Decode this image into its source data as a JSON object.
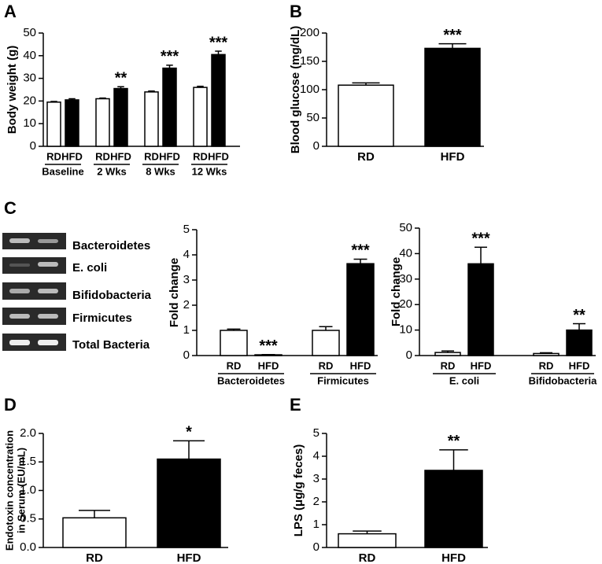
{
  "chart_data": [
    {
      "type": "bar",
      "panel": "A",
      "ylabel": "Body weight (g)",
      "categories": [
        "Baseline",
        "2 Wks",
        "8 Wks",
        "12 Wks"
      ],
      "series": [
        {
          "name": "RD",
          "color": "#ffffff",
          "values": [
            19.5,
            21,
            24,
            26
          ],
          "errors": [
            0.3,
            0.3,
            0.4,
            0.5
          ],
          "significance": [
            null,
            null,
            null,
            null
          ]
        },
        {
          "name": "HFD",
          "color": "#000000",
          "values": [
            20.5,
            25.5,
            34.5,
            40.5
          ],
          "errors": [
            0.5,
            0.8,
            1.3,
            1.5
          ],
          "significance": [
            null,
            "**",
            "***",
            "***"
          ]
        }
      ],
      "ylim": [
        0,
        50
      ],
      "yticks": [
        0,
        10,
        20,
        30,
        40,
        50
      ]
    },
    {
      "type": "bar",
      "panel": "B",
      "ylabel": "Blood glucose (mg/dL)",
      "categories": [
        "RD",
        "HFD"
      ],
      "values": [
        108,
        173
      ],
      "errors": [
        4,
        8
      ],
      "colors": [
        "#ffffff",
        "#000000"
      ],
      "significance": [
        null,
        "***"
      ],
      "ylim": [
        0,
        200
      ],
      "yticks": [
        0,
        50,
        100,
        150,
        200
      ]
    },
    {
      "type": "bar",
      "panel": "C",
      "ylabel": "Fold change",
      "categories": [
        "Bacteroidetes",
        "Firmicutes"
      ],
      "series": [
        {
          "name": "RD",
          "color": "#ffffff",
          "values": [
            1.0,
            1.0
          ],
          "errors": [
            0.05,
            0.15
          ],
          "significance": [
            null,
            null
          ]
        },
        {
          "name": "HFD",
          "color": "#000000",
          "values": [
            0.03,
            3.65
          ],
          "errors": [
            0.01,
            0.18
          ],
          "significance": [
            "***",
            "***"
          ]
        }
      ],
      "ylim": [
        0,
        5
      ],
      "yticks": [
        0,
        1,
        2,
        3,
        4,
        5
      ]
    },
    {
      "type": "bar",
      "ylabel": "Fold change",
      "categories": [
        "E. coli",
        "Bifidobacteria"
      ],
      "series": [
        {
          "name": "RD",
          "color": "#ffffff",
          "values": [
            1.2,
            0.8
          ],
          "errors": [
            0.6,
            0.3
          ],
          "significance": [
            null,
            null
          ]
        },
        {
          "name": "HFD",
          "color": "#000000",
          "values": [
            36,
            10
          ],
          "errors": [
            6.5,
            2.5
          ],
          "significance": [
            "***",
            "**"
          ]
        }
      ],
      "ylim": [
        0,
        50
      ],
      "yticks": [
        0,
        10,
        20,
        30,
        40,
        50
      ]
    },
    {
      "type": "bar",
      "panel": "D",
      "ylabel": [
        "Endotoxin concentration",
        "in Serum (EU/mL)"
      ],
      "categories": [
        "RD",
        "HFD"
      ],
      "values": [
        0.52,
        1.55
      ],
      "errors": [
        0.13,
        0.32
      ],
      "colors": [
        "#ffffff",
        "#000000"
      ],
      "significance": [
        null,
        "*"
      ],
      "ylim": [
        0,
        2
      ],
      "yticks": [
        {
          "value": 0,
          "label": "0.0"
        },
        0.5,
        {
          "value": 1,
          "label": "1.0"
        },
        1.5,
        {
          "value": 2,
          "label": "2.0"
        }
      ]
    },
    {
      "type": "bar",
      "panel": "E",
      "ylabel": "LPS (μg/g feces)",
      "categories": [
        "RD",
        "HFD"
      ],
      "values": [
        0.6,
        3.38
      ],
      "errors": [
        0.12,
        0.9
      ],
      "colors": [
        "#ffffff",
        "#000000"
      ],
      "significance": [
        null,
        "**"
      ],
      "ylim": [
        0,
        5
      ],
      "yticks": [
        0,
        1,
        2,
        3,
        4,
        5
      ]
    }
  ],
  "gel": {
    "labels": [
      "Bacteroidetes",
      "E. coli",
      "Bifidobacteria",
      "Firmicutes",
      "Total  Bacteria"
    ]
  }
}
